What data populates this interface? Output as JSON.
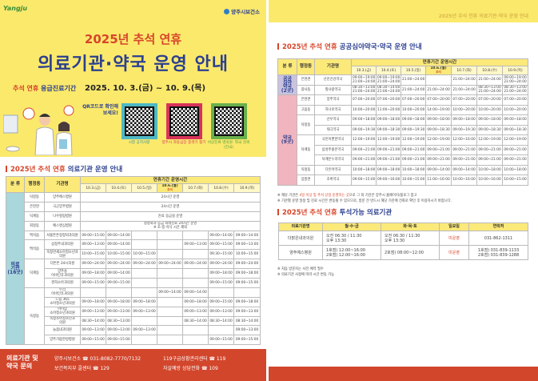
{
  "header": {
    "logo": "Yangju",
    "org": "양주시보건소",
    "title_line1": "2025년 추석 연휴",
    "title_line2": "의료기관·약국 운영 안내",
    "period_label_red": "추석 연휴",
    "period_label_blue": "응급진료기간",
    "period_dates": "2025. 10. 3.(금) ~ 10. 9.(목)",
    "qr_prompt": "QR코드로 확인해보세요!",
    "qr_codes": [
      {
        "caption": "시청\n공지사항",
        "color": "#4fb8c4"
      },
      {
        "caption": "양주시 자동심장\n충격기 찾기",
        "color": "#d8335a"
      },
      {
        "caption": "비상진료 병의원·\n약국 검색(전국)",
        "color": "#6ab04c"
      }
    ]
  },
  "colors": {
    "yellow": "#fbe96c",
    "red": "#d8452a",
    "navy": "#2b3f8f",
    "footer": "#d2462c",
    "hospital_cat": "#a9d7dc",
    "night_cat": "#c9c3e0",
    "pharmacy_cat": "#f1b5bf"
  },
  "table_headers": {
    "category": "분 류",
    "district": "행정동",
    "name": "기관명",
    "period": "연휴기간 운영시간",
    "dates": [
      "10.3.(금)",
      "10.4.(토)",
      "10.5.(일)",
      "10.6.(월)",
      "10.7.(화)",
      "10.8.(수)",
      "10.9.(목)"
    ],
    "holiday_tag": "추석"
  },
  "hospitals": {
    "section_red": "2025년 추석 연휴",
    "section_blue": "의료기관 운영 안내",
    "rows": [
      {
        "category": "의료\n기관\n(16곳)",
        "district": "덕정동",
        "name": "양주예스병원",
        "note": "24시간 운영"
      },
      {
        "category": "의료\n기관\n(16곳)",
        "district": "은현면",
        "name": "국군양주병원",
        "note": "24시간 운영"
      },
      {
        "category": "의료\n기관\n(16곳)",
        "district": "덕계동",
        "name": "나우힐링병원",
        "note": "진료 응급실 운영"
      },
      {
        "category": "의료\n기관\n(16곳)",
        "district": "회정동",
        "name": "예스앤심병원",
        "note": "정형외과 등급 외래진료 24시간 운영\n※ 조·중·석식 시간 제외"
      },
      {
        "category": "의료\n기관\n(16곳)",
        "district": "백석읍",
        "name": "서울튼튼정형외과의원",
        "hours": [
          "09:00~15:00",
          "09:00~14:00",
          "",
          "",
          "",
          "09:00~14:00",
          "09:00~14:00"
        ]
      },
      {
        "category": "의료\n기관\n(16곳)",
        "district": "백석읍 ",
        "name": "삼정주내과의원",
        "hours": [
          "09:00~13:00",
          "09:00~14:00",
          "",
          "",
          "09:00~13:00",
          "09:00~15:00",
          "09:00~13:00"
        ]
      },
      {
        "category": "의료\n기관\n(16곳)",
        "district": "백석읍 ",
        "name": "옥정연세소아청소년과의원",
        "hours": [
          "10:00~15:00",
          "10:00~15:00",
          "10:00~15:00",
          "",
          "",
          "09:30~15:00",
          "10:00~15:00"
        ]
      },
      {
        "category": "의료\n기관\n(16곳)",
        "district": "덕계동 ",
        "name": "더튼튼 24시의원",
        "hours": [
          "09:00~24:00",
          "09:00~24:00",
          "09:00~24:00",
          "09:00~24:00",
          "09:00~24:00",
          "09:00~24:00",
          "09:00~24:00"
        ]
      },
      {
        "category": "의료\n기관\n(16곳)",
        "district": "덕계동 ",
        "name": "양주송\n이비인후과의원",
        "hours": [
          "09:00~18:00",
          "09:00~14:00",
          "",
          "",
          "",
          "09:00~18:00",
          "09:00~18:00"
        ]
      },
      {
        "category": "의료\n기관\n(16곳)",
        "district": "덕계동 ",
        "name": "경희소아과의원",
        "hours": [
          "09:00~15:00",
          "09:00~15:00",
          "",
          "",
          "",
          "09:00~15:00",
          "09:00~15:00"
        ]
      },
      {
        "category": "의료\n기관\n(16곳)",
        "district": "옥정동",
        "name": "두리\n이비인후과의원",
        "hours": [
          "",
          "",
          "",
          "09:00~14:00",
          "09:00~14:00",
          "",
          ""
        ]
      },
      {
        "category": "의료\n기관\n(16곳)",
        "district": "옥정동",
        "name": "드림 365\n소아청소년과의원",
        "hours": [
          "09:00~18:00",
          "09:00~18:00",
          "09:00~18:00",
          "",
          "09:00~18:00",
          "09:00~15:00",
          "09:00~18:00"
        ]
      },
      {
        "category": "의료\n기관\n(16곳)",
        "district": "옥정동",
        "name": "아이맘\n소아청소년과의원",
        "hours": [
          "09:00~13:00",
          "09:00~13:00",
          "09:00~13:00",
          "",
          "09:00~13:00",
          "09:00~13:00",
          "09:00~13:00"
        ]
      },
      {
        "category": "의료\n기관\n(16곳)",
        "district": "옥정동",
        "name": "옥정소아청소년과\n의원",
        "hours": [
          "08:30~14:00",
          "08:30~13:00",
          "",
          "",
          "08:30~14:00",
          "08:30~14:00",
          "08:30~14:00"
        ]
      },
      {
        "category": "의료\n기관\n(16곳)",
        "district": "옥정동",
        "name": "늘봄내과의원",
        "hours": [
          "09:00~13:00",
          "09:00~13:00",
          "09:00~13:00",
          "",
          "",
          "",
          "09:00~13:00"
        ]
      },
      {
        "category": "의료\n기관\n(16곳)",
        "district": "옥정동",
        "name": "양주가람한방병원",
        "hours": [
          "09:00~15:00",
          "09:00~15:00",
          "",
          "",
          "",
          "09:00~15:00",
          "09:00~15:00"
        ]
      }
    ]
  },
  "footer": {
    "inquiry": "의료기관 및\n약국 문의",
    "contacts": [
      "양주시보건소 ☎ 031-8082-7770/7132",
      "보건복지부 콜센터 ☎ 129",
      "119구급상황관리센터 ☎ 119",
      "자살예방 상담전화 ☎ 109"
    ]
  },
  "right_banner": "2025년 추석 연휴 의료기관·약국 운영 안내",
  "pharmacies": {
    "section_red": "2025년 추석 연휴",
    "section_blue": "공공심야약국·약국 운영 안내",
    "rows": [
      {
        "category": "공공\n심야\n약국\n(2곳)",
        "catColor": "night",
        "district": "은현면",
        "name": "선진건강약국",
        "hours": [
          "09:00~19:00\n21:00~24:00",
          "09:00~19:00\n21:00~24:00",
          "21:00~24:00",
          "",
          "21:00~24:00",
          "21:00~24:00",
          "09:00~19:00\n21:00~24:00"
        ]
      },
      {
        "category": "공공\n심야\n약국\n(2곳)",
        "catColor": "night",
        "district": "광사동",
        "name": "칠사랑약국",
        "hours": [
          "08:30~13:00\n21:00~24:00",
          "08:30~14:00\n21:00~24:00",
          "21:00~24:00",
          "21:00~24:00",
          "21:00~24:00",
          "08:30~13:00\n21:00~24:00",
          "08:30~13:00\n21:00~24:00"
        ]
      },
      {
        "category": "약국\n(9곳)",
        "catColor": "pharmacy",
        "district": "은현면",
        "name": "양주약국",
        "hours": [
          "07:00~20:00",
          "07:00~20:00",
          "07:00~20:00",
          "07:00~20:00",
          "07:00~20:00",
          "07:00~20:00",
          "07:00~20:00"
        ]
      },
      {
        "category": "약국\n(9곳)",
        "catColor": "pharmacy",
        "district": "고읍동",
        "name": "하나로약국",
        "hours": [
          "10:00~20:00",
          "11:00~20:00",
          "10:00~20:00",
          "14:00~19:00",
          "10:00~20:00",
          "10:00~20:00",
          "10:00~20:00"
        ]
      },
      {
        "category": "약국\n(9곳)",
        "catColor": "pharmacy",
        "district": "덕정동",
        "name": "선우약국",
        "hours": [
          "09:00~18:00",
          "09:00~18:00",
          "09:00~18:00",
          "09:00~18:00",
          "09:00~18:00",
          "09:00~18:00",
          "09:00~18:00"
        ]
      },
      {
        "category": "약국\n(9곳)",
        "catColor": "pharmacy",
        "district": "덕정동",
        "name": "태극약국",
        "hours": [
          "09:00~19:30",
          "09:00~18:30",
          "09:00~19:30",
          "09:00~18:30",
          "09:00~19:30",
          "09:00~18:30",
          "09:00~18:30"
        ]
      },
      {
        "category": "약국\n(9곳)",
        "catColor": "pharmacy",
        "district": "덕계동",
        "name": "국민이편한약국",
        "hours": [
          "12:00~19:00",
          "12:00~19:00",
          "12:00~19:00",
          "12:00~19:00",
          "12:00~16:00",
          "12:00~19:00",
          "12:00~19:00"
        ]
      },
      {
        "category": "약국\n(9곳)",
        "catColor": "pharmacy",
        "district": "덕계동",
        "name": "삼성주홍온약국",
        "hours": [
          "09:00~21:00",
          "09:00~21:00",
          "09:00~21:00",
          "09:00~21:00",
          "09:00~21:00",
          "09:00~21:00",
          "09:00~21:00"
        ]
      },
      {
        "category": "약국\n(9곳)",
        "catColor": "pharmacy",
        "district": "덕계동",
        "name": "덕계온누리약국",
        "hours": [
          "09:00~21:00",
          "09:00~21:00",
          "09:00~21:00",
          "09:00~21:00",
          "09:00~21:00",
          "09:00~21:00",
          "09:00~21:00"
        ]
      },
      {
        "category": "약국\n(9곳)",
        "catColor": "pharmacy",
        "district": "옥정동",
        "name": "다온아약국",
        "hours": [
          "10:00~18:00",
          "09:00~18:00",
          "10:00~18:00",
          "09:00~14:00",
          "09:00~14:00",
          "10:00~18:00",
          "10:00~18:00"
        ]
      },
      {
        "category": "약국\n(9곳)",
        "catColor": "pharmacy",
        "district": "장흥면",
        "name": "초록약국",
        "hours": [
          "09:00~15:00",
          "09:00~16:00",
          "10:00~15:00",
          "11:00~16:00",
          "10:00~16:00",
          "10:00~16:00",
          "10:00~15:00"
        ]
      }
    ],
    "notes": [
      {
        "pre": "※ 해당 기관은 ",
        "hl": "4일 이상 및 추석 당일 운영하는 곳",
        "post": "으로 그 외 기관은 양주시 홈페이지/블로그 참고"
      },
      {
        "pre": "※ 기관별 운영 일정 및 진료 시간은 변동될 수 있으므로, 방문 전 반드시 해당 기관에 전화로 확인 후 이용하시기 바랍니다.",
        "hl": "",
        "post": ""
      }
    ]
  },
  "dialysis": {
    "section_red": "2025년 추석 연휴",
    "section_blue": "투석가능 의료기관",
    "headers": [
      "의료기관명",
      "월·수·금",
      "화·목·토",
      "일요일",
      "연락처"
    ],
    "rows": [
      [
        "더맑은내과의원",
        "오전 06:30 / 11:30\n오후 13:30",
        "오전 06:30 / 11:30\n오후 13:30",
        "미운영",
        "031-862-1311"
      ],
      [
        "양주예스병원",
        "1호점) 12:00~16:00\n2호점) 12:00~16:00",
        "2호점) 08:00~12:00",
        "미운영",
        "1호점) 031-839-1133\n2호점) 031-839-1288"
      ]
    ],
    "notes": [
      "※ 처음 방문자는 사전 예약 필수",
      "※ 의료기관 사정에 따라 시간 변동 가능"
    ]
  }
}
